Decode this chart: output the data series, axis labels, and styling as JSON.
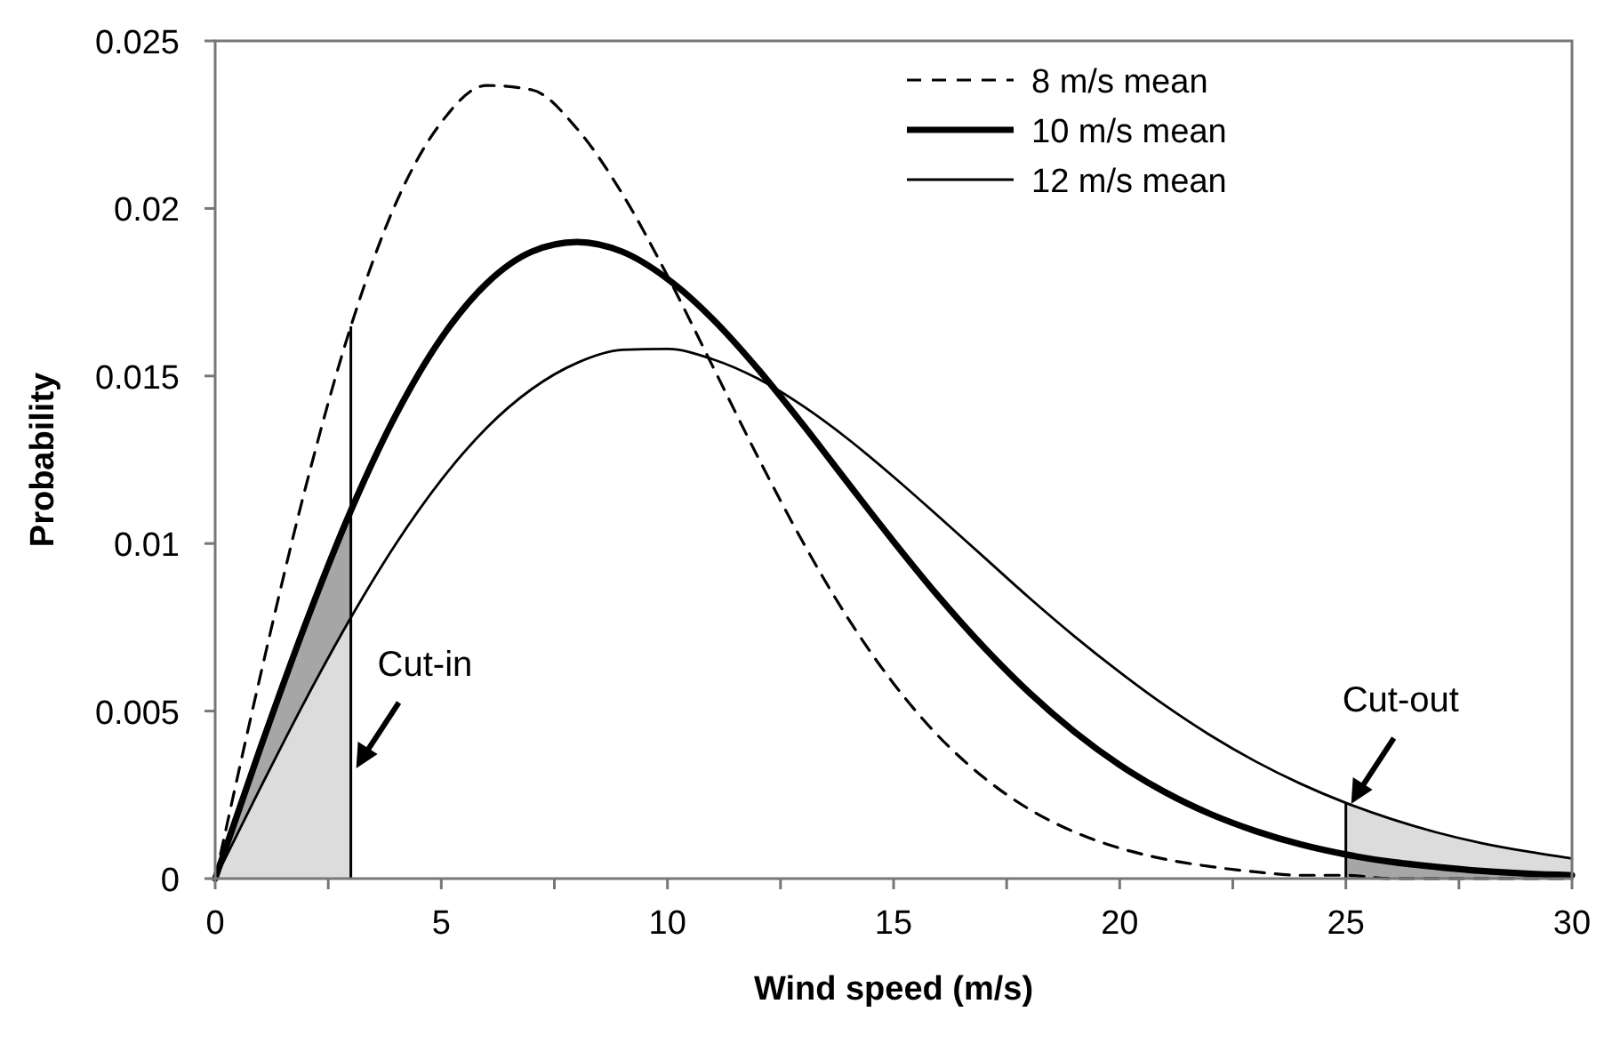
{
  "chart_data": {
    "type": "line",
    "xlabel": "Wind speed (m/s)",
    "ylabel": "Probability",
    "x": [
      0,
      1,
      2,
      3,
      4,
      5,
      6,
      7,
      8,
      9,
      10,
      11,
      12,
      13,
      14,
      15,
      16,
      17,
      18,
      19,
      20,
      21,
      22,
      23,
      24,
      25,
      26,
      27,
      28,
      29,
      30
    ],
    "series": [
      {
        "name": "8 m/s mean",
        "color": "#000000",
        "line_style": "dashed",
        "values": [
          0,
          0.00606,
          0.01168,
          0.01648,
          0.02017,
          0.02257,
          0.02367,
          0.02354,
          0.02238,
          0.02044,
          0.01799,
          0.01529,
          0.01258,
          0.01003,
          0.00775,
          0.00582,
          0.00424,
          0.00301,
          0.00207,
          0.00139,
          0.00091,
          0.00058,
          0.00036,
          0.0002,
          0.0001,
          0.0001,
          0,
          0,
          0,
          0,
          0
        ]
      },
      {
        "name": "10 m/s mean",
        "color": "#000000",
        "line_style": "solid",
        "values": [
          0,
          0.0039,
          0.00761,
          0.01098,
          0.01385,
          0.01613,
          0.01776,
          0.01871,
          0.019,
          0.01871,
          0.0179,
          0.0167,
          0.01521,
          0.01354,
          0.01179,
          0.01006,
          0.00841,
          0.0069,
          0.00555,
          0.00438,
          0.00339,
          0.00258,
          0.00193,
          0.00142,
          0.00102,
          0.00072,
          0.0005,
          0.00035,
          0.00023,
          0.00015,
          0.0001
        ]
      },
      {
        "name": "12 m/s mean",
        "color": "#000000",
        "line_style": "solid",
        "values": [
          0,
          0.00271,
          0.00534,
          0.00779,
          0.01,
          0.0119,
          0.01345,
          0.01461,
          0.01539,
          0.01578,
          0.01581,
          0.0155,
          0.01492,
          0.0141,
          0.01311,
          0.01199,
          0.0108,
          0.00959,
          0.00838,
          0.00723,
          0.00616,
          0.00517,
          0.00428,
          0.0035,
          0.00283,
          0.00226,
          0.00178,
          0.00138,
          0.00106,
          0.00081,
          0.0006
        ]
      },
      {
        "type": "area",
        "color": "#a6a6a6",
        "x": [
          0,
          1,
          2,
          3
        ],
        "values": [
          0,
          0.0039,
          0.00761,
          0.01098
        ]
      },
      {
        "type": "area",
        "color": "#dcdcdc",
        "x": [
          0,
          1,
          2,
          3
        ],
        "values": [
          0,
          0.00271,
          0.00534,
          0.00779
        ]
      },
      {
        "type": "area",
        "color": "#dcdcdc",
        "x": [
          25,
          26,
          27,
          28,
          29,
          30
        ],
        "values": [
          0.00226,
          0.00178,
          0.00138,
          0.00106,
          0.00081,
          0.0006
        ]
      },
      {
        "type": "area",
        "color": "#a6a6a6",
        "x": [
          25,
          26,
          27,
          28,
          29,
          30
        ],
        "values": [
          0.00072,
          0.0005,
          0.00035,
          0.00023,
          0.00015,
          0.0001
        ]
      }
    ],
    "xlim": [
      0,
      30
    ],
    "xticks": [
      0,
      {
        "value": 2.5,
        "label": null
      },
      5,
      {
        "value": 7.5,
        "label": null
      },
      10,
      {
        "value": 12.5,
        "label": null
      },
      15,
      {
        "value": 17.5,
        "label": null
      },
      20,
      {
        "value": 22.5,
        "label": null
      },
      25,
      {
        "value": 27.5,
        "label": null
      },
      30
    ],
    "ylim": [
      0,
      0.025
    ],
    "yticks": [
      0,
      0.005,
      0.01,
      0.015,
      0.02,
      0.025
    ],
    "grid": false,
    "legend": "top right",
    "marker": "none",
    "ref_lines": [
      {
        "axis": "x",
        "value": 3,
        "label": "Cut-in"
      },
      {
        "axis": "x",
        "value": 25,
        "label": "Cut-out"
      }
    ]
  }
}
